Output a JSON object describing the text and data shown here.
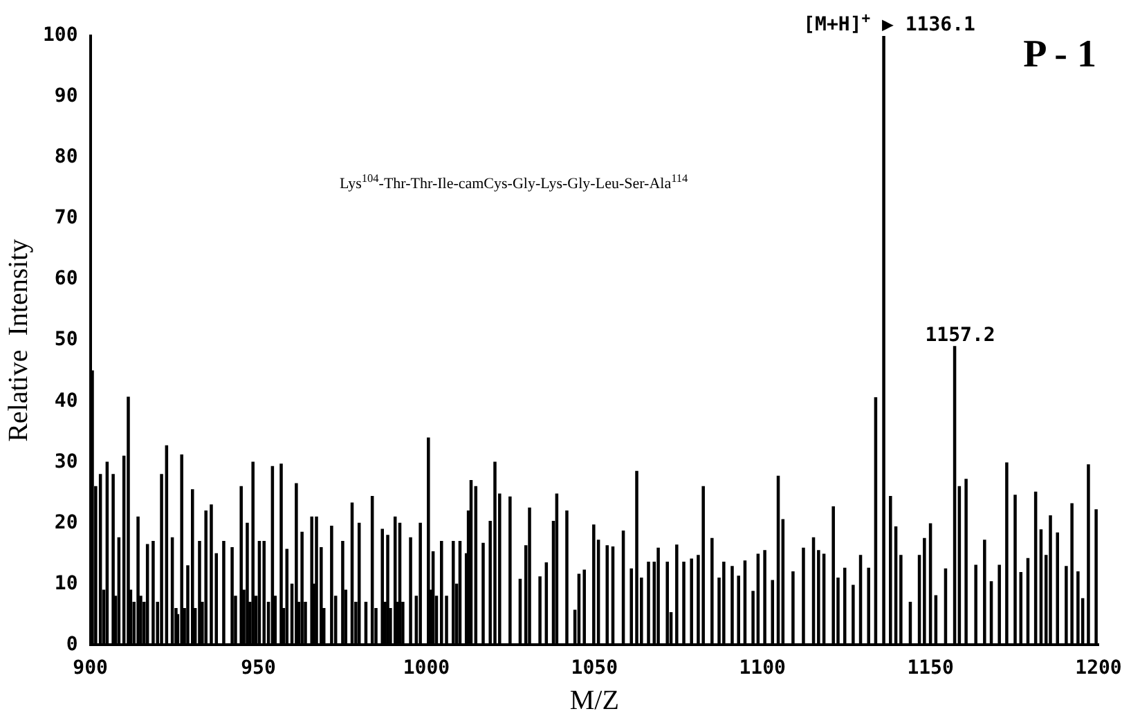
{
  "chart_data": {
    "type": "bar",
    "title": "P - 1",
    "xlabel": "M/Z",
    "ylabel": "Relative  Intensity",
    "x": [
      900.6,
      901.6,
      903,
      904,
      905,
      906.8,
      907.5,
      908.5,
      910,
      911.3,
      912,
      913,
      914.2,
      915,
      916,
      917,
      918.7,
      919.5,
      920,
      921.2,
      922.7,
      924.4,
      925.5,
      926,
      927.2,
      928,
      929,
      930.4,
      931.2,
      932.5,
      933.3,
      934.4,
      936,
      937.5,
      939.7,
      942.2,
      943.2,
      944.9,
      945.7,
      946.7,
      947.5,
      948.4,
      949.3,
      950.3,
      951.7,
      953,
      954.2,
      955,
      956.8,
      957.5,
      958.5,
      960,
      961.3,
      962,
      963,
      964,
      965.9,
      966.5,
      967.3,
      968.7,
      969.5,
      971.8,
      973,
      975.1,
      976,
      977.9,
      979,
      980,
      982,
      983.9,
      985,
      986.9,
      987.7,
      988.5,
      989.3,
      990.7,
      991.4,
      992.1,
      993,
      995.3,
      997,
      998.2,
      1000.6,
      1001.3,
      1002,
      1003,
      1004.5,
      1006,
      1008,
      1009,
      1010,
      1011.9,
      1012.5,
      1013.3,
      1014.7,
      1016.9,
      1019,
      1020.4,
      1021.8,
      1024.9,
      1027.9,
      1029.6,
      1030.7,
      1033.8,
      1035.7,
      1037.8,
      1038.8,
      1041.8,
      1044.2,
      1045.4,
      1047,
      1049.8,
      1051.2,
      1053.8,
      1055.5,
      1058.6,
      1061,
      1062.6,
      1064,
      1066.1,
      1067.8,
      1069,
      1071.7,
      1072.8,
      1074.5,
      1076.6,
      1078.9,
      1080.9,
      1082.4,
      1085,
      1087.1,
      1088.5,
      1091,
      1092.9,
      1094.8,
      1097.2,
      1098.7,
      1100.7,
      1103,
      1104.7,
      1106.1,
      1109.1,
      1112.2,
      1115.2,
      1116.7,
      1118.3,
      1121.1,
      1122.5,
      1124.5,
      1127,
      1129.2,
      1131.6,
      1133.7,
      1136.1,
      1138.1,
      1139.7,
      1141.2,
      1144,
      1146.7,
      1148.2,
      1150,
      1151.6,
      1154.5,
      1157.2,
      1158.6,
      1160.6,
      1163.5,
      1166.1,
      1168.1,
      1170.5,
      1172.7,
      1175.2,
      1176.9,
      1179,
      1181.3,
      1182.9,
      1184.4,
      1185.7,
      1187.8,
      1190.4,
      1192.1,
      1193.9,
      1195.3,
      1197,
      1199.3
    ],
    "series": [
      {
        "color": "#000000",
        "values": [
          45,
          26,
          28,
          9,
          30,
          28,
          8,
          17.6,
          31,
          40.7,
          9,
          7,
          21,
          8,
          7,
          16.5,
          17,
          null,
          7,
          28,
          32.7,
          17.6,
          6,
          5,
          31.2,
          6,
          13,
          25.5,
          6,
          17,
          7,
          22,
          23,
          15,
          17,
          16,
          8,
          26,
          9,
          20,
          7,
          30,
          8,
          17,
          17,
          7,
          29.3,
          8,
          29.7,
          6,
          15.7,
          10,
          26.5,
          7,
          18.5,
          7,
          21,
          10,
          21,
          16,
          6,
          19.5,
          8,
          17,
          9,
          23.3,
          7,
          20,
          7,
          24.4,
          6,
          19,
          7,
          18,
          6,
          21,
          7,
          20,
          7,
          17.6,
          8,
          20,
          34,
          9,
          15.3,
          8,
          17,
          8,
          17,
          10,
          17,
          15,
          22,
          27,
          26,
          16.7,
          20.3,
          30,
          24.8,
          24.3,
          10.8,
          16.3,
          22.5,
          11.2,
          13.5,
          20.3,
          24.8,
          22,
          5.7,
          11.6,
          12.3,
          19.7,
          17.2,
          16.3,
          16.1,
          18.7,
          12.5,
          28.5,
          11,
          13.6,
          13.6,
          15.9,
          13.6,
          5.3,
          16.4,
          13.6,
          14.1,
          14.7,
          26,
          17.5,
          11,
          13.6,
          12.9,
          11.3,
          13.8,
          8.8,
          14.9,
          15.5,
          10.6,
          27.7,
          20.6,
          12,
          15.9,
          17.6,
          15.5,
          14.9,
          22.7,
          11,
          12.6,
          9.8,
          14.7,
          12.6,
          40.6,
          100,
          24.4,
          19.4,
          14.7,
          7,
          14.7,
          17.5,
          19.9,
          8.1,
          12.5,
          49,
          26,
          27.2,
          13.1,
          17.2,
          10.4,
          13.1,
          29.9,
          24.6,
          11.9,
          14.2,
          25.1,
          18.9,
          14.7,
          21.2,
          18.4,
          12.9,
          23.2,
          12,
          7.6,
          29.6,
          22.2
        ]
      }
    ],
    "xlim": [
      900,
      1200
    ],
    "xticks": [
      900,
      950,
      1000,
      1050,
      1100,
      1150,
      1200
    ],
    "ylim": [
      0,
      100
    ],
    "yticks": [
      0,
      10,
      20,
      30,
      40,
      50,
      60,
      70,
      80,
      90,
      100
    ],
    "annotations": [
      {
        "text": "[M+H]$^{+}$ ▶ 1136.1",
        "x": 1136.1,
        "y": 100
      },
      {
        "text": "1157.2",
        "x": 1157.2,
        "y": 49
      },
      "Lys$^{104}$-Thr-Thr-Ile-camCys-Gly-Lys-Gly-Leu-Ser-Ala$^{114}$"
    ]
  }
}
